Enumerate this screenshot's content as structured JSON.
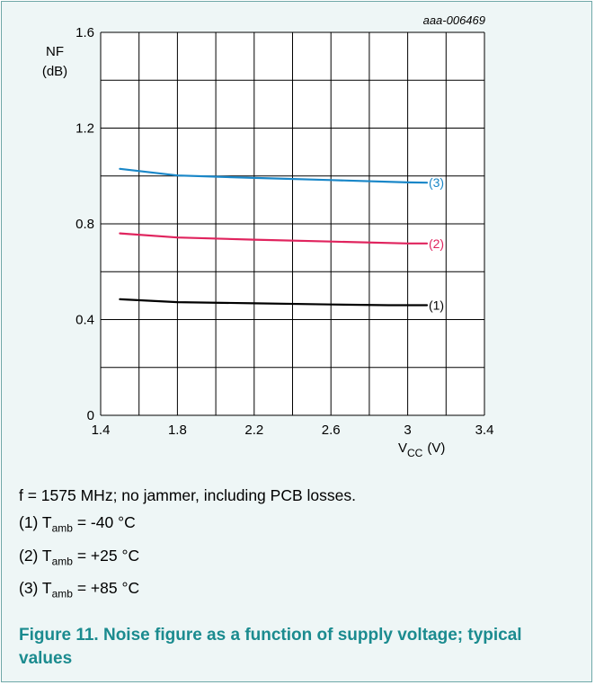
{
  "doc_id": "aaa-006469",
  "chart_data": {
    "type": "line",
    "xlabel": {
      "main": "V",
      "sub": "CC",
      "unit": "(V)"
    },
    "ylabel": {
      "line1": "NF",
      "line2": "(dB)"
    },
    "xlim": [
      1.4,
      3.4
    ],
    "ylim": [
      0,
      1.6
    ],
    "xticks": [
      "1.4",
      "1.8",
      "2.2",
      "2.6",
      "3",
      "3.4"
    ],
    "yticks": [
      "0",
      "0.4",
      "0.8",
      "1.2",
      "1.6"
    ],
    "x_minor_step": 0.2,
    "y_minor_step": 0.2,
    "grid": true,
    "series": [
      {
        "name": "(1)",
        "color": "#000000",
        "x": [
          1.5,
          1.8,
          2.2,
          2.6,
          2.9,
          3.1
        ],
        "y": [
          0.485,
          0.473,
          0.468,
          0.463,
          0.46,
          0.46
        ]
      },
      {
        "name": "(2)",
        "color": "#e0245e",
        "x": [
          1.5,
          1.8,
          2.2,
          2.6,
          3.0,
          3.1
        ],
        "y": [
          0.76,
          0.743,
          0.734,
          0.726,
          0.718,
          0.718
        ]
      },
      {
        "name": "(3)",
        "color": "#1a87c8",
        "x": [
          1.5,
          1.8,
          2.2,
          2.6,
          3.0,
          3.1
        ],
        "y": [
          1.03,
          1.002,
          0.992,
          0.983,
          0.973,
          0.972
        ]
      }
    ]
  },
  "notes": {
    "condition": "f = 1575 MHz; no jammer, including PCB losses.",
    "items": [
      {
        "num": "(1) T",
        "sub": "amb",
        "text": " = -40 °C"
      },
      {
        "num": "(2) T",
        "sub": "amb",
        "text": " = +25 °C"
      },
      {
        "num": "(3) T",
        "sub": "amb",
        "text": " = +85 °C"
      }
    ]
  },
  "caption": "Figure 11.  Noise figure as a function of supply voltage; typical values"
}
